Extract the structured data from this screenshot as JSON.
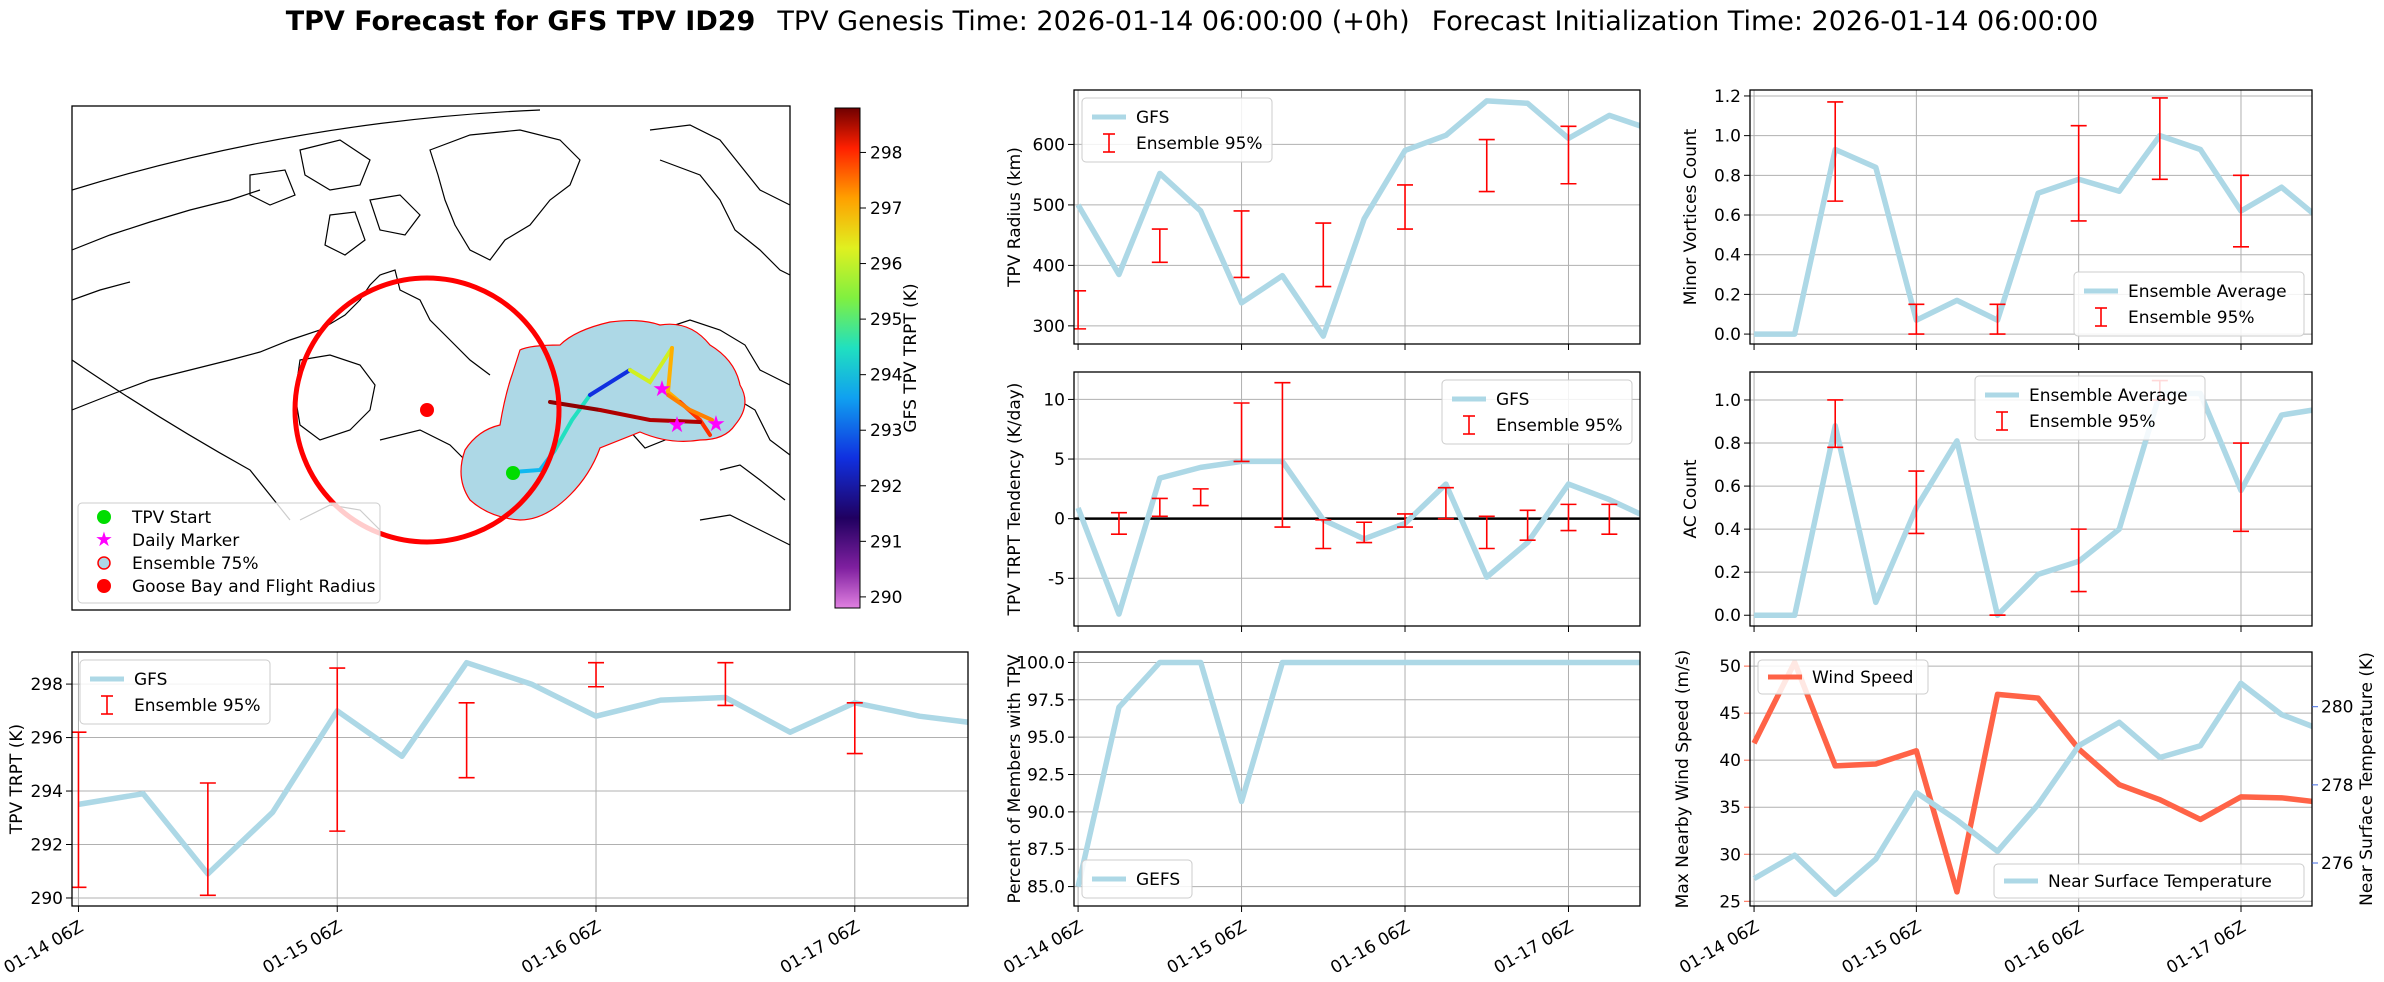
{
  "title": {
    "main": "TPV Forecast for GFS TPV ID29",
    "genesis": "TPV Genesis Time: 2026-01-14 06:00:00 (+0h)",
    "init": "Forecast Initialization Time: 2026-01-14 06:00:00"
  },
  "colors": {
    "gfs_line": "#add8e6",
    "error_bar": "#ff0000",
    "wind": "#ff6347",
    "temp_axis": "#4169e1",
    "circle": "#ff0000",
    "ensemble_fill": "#add8e6"
  },
  "map": {
    "colorbar": {
      "label": "GFS TPV TRPT (K)",
      "ticks": [
        "290",
        "291",
        "292",
        "293",
        "294",
        "295",
        "296",
        "297",
        "298"
      ],
      "range": [
        289.8,
        298.8
      ]
    },
    "legend": [
      "TPV Start",
      "Daily Marker",
      "Ensemble 75%",
      "Goose Bay and Flight Radius"
    ]
  },
  "chart_data": [
    {
      "id": "radius",
      "type": "line",
      "ylabel": "TPV Radius (km)",
      "ylim": [
        270,
        690
      ],
      "yticks": [
        300,
        400,
        500,
        600
      ],
      "x": [
        0,
        1,
        2,
        3,
        4,
        5,
        6,
        7,
        8,
        9,
        10,
        11,
        12,
        13,
        14
      ],
      "series": [
        {
          "name": "GFS",
          "values": [
            500,
            385,
            552,
            490,
            338,
            383,
            283,
            477,
            590,
            615,
            672,
            668,
            610,
            648,
            625
          ]
        }
      ],
      "errorbars": [
        {
          "x": 0,
          "low": 295,
          "high": 358
        },
        {
          "x": 2,
          "low": 405,
          "high": 460
        },
        {
          "x": 4,
          "low": 380,
          "high": 490
        },
        {
          "x": 6,
          "low": 365,
          "high": 470
        },
        {
          "x": 8,
          "low": 460,
          "high": 533
        },
        {
          "x": 10,
          "low": 522,
          "high": 608
        },
        {
          "x": 12,
          "low": 535,
          "high": 630
        }
      ],
      "legend": [
        "GFS",
        "Ensemble 95%"
      ]
    },
    {
      "id": "minor",
      "type": "line",
      "ylabel": "Minor Vortices Count",
      "ylim": [
        -0.05,
        1.23
      ],
      "yticks": [
        0.0,
        0.2,
        0.4,
        0.6,
        0.8,
        1.0,
        1.2
      ],
      "x": [
        0,
        1,
        2,
        3,
        4,
        5,
        6,
        7,
        8,
        9,
        10,
        11,
        12,
        13,
        14
      ],
      "series": [
        {
          "name": "Ensemble Average",
          "values": [
            0.0,
            0.0,
            0.93,
            0.84,
            0.07,
            0.17,
            0.07,
            0.71,
            0.78,
            0.72,
            1.0,
            0.93,
            0.62,
            0.74,
            0.57
          ]
        }
      ],
      "errorbars": [
        {
          "x": 2,
          "low": 0.67,
          "high": 1.17
        },
        {
          "x": 4,
          "low": 0.0,
          "high": 0.15
        },
        {
          "x": 6,
          "low": 0.0,
          "high": 0.15
        },
        {
          "x": 8,
          "low": 0.57,
          "high": 1.05
        },
        {
          "x": 10,
          "low": 0.78,
          "high": 1.19
        },
        {
          "x": 12,
          "low": 0.44,
          "high": 0.8
        }
      ],
      "legend": [
        "Ensemble Average",
        "Ensemble 95%"
      ]
    },
    {
      "id": "tendency",
      "type": "line",
      "ylabel": "TPV TRPT Tendency (K/day)",
      "ylim": [
        -9,
        12.3
      ],
      "yticks": [
        -5,
        0,
        5,
        10
      ],
      "zero_line": true,
      "x": [
        0,
        1,
        2,
        3,
        4,
        5,
        6,
        7,
        8,
        9,
        10,
        11,
        12,
        13,
        14
      ],
      "series": [
        {
          "name": "GFS",
          "values": [
            0.9,
            -8.0,
            3.4,
            4.3,
            4.8,
            4.8,
            -0.1,
            -1.7,
            -0.4,
            2.9,
            -4.9,
            -2.0,
            2.9,
            1.6,
            0.0
          ]
        }
      ],
      "errorbars": [
        {
          "x": 1,
          "low": -1.3,
          "high": 0.5
        },
        {
          "x": 2,
          "low": 0.2,
          "high": 1.7
        },
        {
          "x": 3,
          "low": 1.1,
          "high": 2.5
        },
        {
          "x": 4,
          "low": 4.8,
          "high": 9.7
        },
        {
          "x": 5,
          "low": -0.7,
          "high": 11.4
        },
        {
          "x": 6,
          "low": -2.5,
          "high": -0.1
        },
        {
          "x": 7,
          "low": -2.0,
          "high": -0.3
        },
        {
          "x": 8,
          "low": -0.7,
          "high": 0.4
        },
        {
          "x": 9,
          "low": 0.0,
          "high": 2.6
        },
        {
          "x": 10,
          "low": -2.5,
          "high": 0.2
        },
        {
          "x": 11,
          "low": -1.8,
          "high": 0.7
        },
        {
          "x": 12,
          "low": -1.0,
          "high": 1.2
        },
        {
          "x": 13,
          "low": -1.3,
          "high": 1.2
        }
      ],
      "legend": [
        "GFS",
        "Ensemble 95%"
      ]
    },
    {
      "id": "ac",
      "type": "line",
      "ylabel": "AC Count",
      "ylim": [
        -0.05,
        1.13
      ],
      "yticks": [
        0.0,
        0.2,
        0.4,
        0.6,
        0.8,
        1.0
      ],
      "x": [
        0,
        1,
        2,
        3,
        4,
        5,
        6,
        7,
        8,
        9,
        10,
        11,
        12,
        13,
        14
      ],
      "series": [
        {
          "name": "Ensemble Average",
          "values": [
            0.0,
            0.0,
            0.88,
            0.06,
            0.5,
            0.81,
            0.0,
            0.19,
            0.25,
            0.4,
            1.03,
            1.03,
            0.58,
            0.93,
            0.96
          ]
        }
      ],
      "errorbars": [
        {
          "x": 2,
          "low": 0.78,
          "high": 1.0
        },
        {
          "x": 4,
          "low": 0.38,
          "high": 0.67
        },
        {
          "x": 6,
          "low": 0.0,
          "high": 0.0
        },
        {
          "x": 8,
          "low": 0.11,
          "high": 0.4
        },
        {
          "x": 10,
          "low": 1.0,
          "high": 1.09
        },
        {
          "x": 12,
          "low": 0.39,
          "high": 0.8
        }
      ],
      "legend": [
        "Ensemble Average",
        "Ensemble 95%"
      ]
    },
    {
      "id": "trpt",
      "type": "line",
      "ylabel": "TPV TRPT (K)",
      "ylim": [
        289.7,
        299.2
      ],
      "yticks": [
        290,
        292,
        294,
        296,
        298
      ],
      "xticks": [
        "01-14 06Z",
        "01-15 06Z",
        "01-16 06Z",
        "01-17 06Z"
      ],
      "x": [
        0,
        1,
        2,
        3,
        4,
        5,
        6,
        7,
        8,
        9,
        10,
        11,
        12,
        13,
        14
      ],
      "series": [
        {
          "name": "GFS",
          "values": [
            293.5,
            293.9,
            290.9,
            293.2,
            297.0,
            295.3,
            298.8,
            298.0,
            296.8,
            297.4,
            297.5,
            296.2,
            297.3,
            296.8,
            296.5
          ]
        }
      ],
      "errorbars": [
        {
          "x": 0,
          "low": 290.4,
          "high": 296.2
        },
        {
          "x": 2,
          "low": 290.1,
          "high": 294.3
        },
        {
          "x": 4,
          "low": 292.5,
          "high": 298.6
        },
        {
          "x": 6,
          "low": 294.5,
          "high": 297.3
        },
        {
          "x": 8,
          "low": 297.9,
          "high": 298.8
        },
        {
          "x": 10,
          "low": 297.2,
          "high": 298.8
        },
        {
          "x": 12,
          "low": 295.4,
          "high": 297.3
        }
      ],
      "legend": [
        "GFS",
        "Ensemble 95%"
      ]
    },
    {
      "id": "members",
      "type": "line",
      "ylabel": "Percent of Members with TPV",
      "ylim": [
        83.7,
        100.7
      ],
      "yticks": [
        85.0,
        87.5,
        90.0,
        92.5,
        95.0,
        97.5,
        100.0
      ],
      "xticks": [
        "01-14 06Z",
        "01-15 06Z",
        "01-16 06Z",
        "01-17 06Z"
      ],
      "x": [
        0,
        1,
        2,
        3,
        4,
        5,
        6,
        7,
        8,
        9,
        10,
        11,
        12,
        13,
        14
      ],
      "series": [
        {
          "name": "GEFS",
          "values": [
            85.0,
            97.0,
            100.0,
            100.0,
            90.7,
            100.0,
            100.0,
            100.0,
            100.0,
            100.0,
            100.0,
            100.0,
            100.0,
            100.0,
            100.0
          ]
        }
      ],
      "legend": [
        "GEFS"
      ]
    },
    {
      "id": "wind",
      "type": "line",
      "ylabel": "Max Nearby Wind Speed (m/s)",
      "y2label": "Near Surface Temperature (K)",
      "ylim": [
        24.5,
        51.5
      ],
      "yticks": [
        25,
        30,
        35,
        40,
        45,
        50
      ],
      "y2lim": [
        274.9,
        281.4
      ],
      "y2ticks": [
        276,
        278,
        280
      ],
      "xticks": [
        "01-14 06Z",
        "01-15 06Z",
        "01-16 06Z",
        "01-17 06Z"
      ],
      "x": [
        0,
        1,
        2,
        3,
        4,
        5,
        6,
        7,
        8,
        9,
        10,
        11,
        12,
        13,
        14
      ],
      "series": [
        {
          "name": "Wind Speed",
          "axis": "left",
          "values": [
            41.8,
            50.4,
            39.4,
            39.6,
            41.0,
            26.0,
            47.0,
            46.6,
            41.2,
            37.4,
            35.8,
            33.7,
            36.1,
            36.0,
            35.5
          ]
        },
        {
          "name": "Near Surface Temperature",
          "axis": "right",
          "values": [
            275.6,
            276.2,
            275.2,
            276.1,
            277.8,
            277.1,
            276.3,
            277.5,
            279.0,
            279.6,
            278.7,
            279.0,
            280.6,
            279.8,
            279.4
          ]
        }
      ],
      "legend": [
        "Wind Speed",
        "Near Surface Temperature"
      ]
    }
  ]
}
